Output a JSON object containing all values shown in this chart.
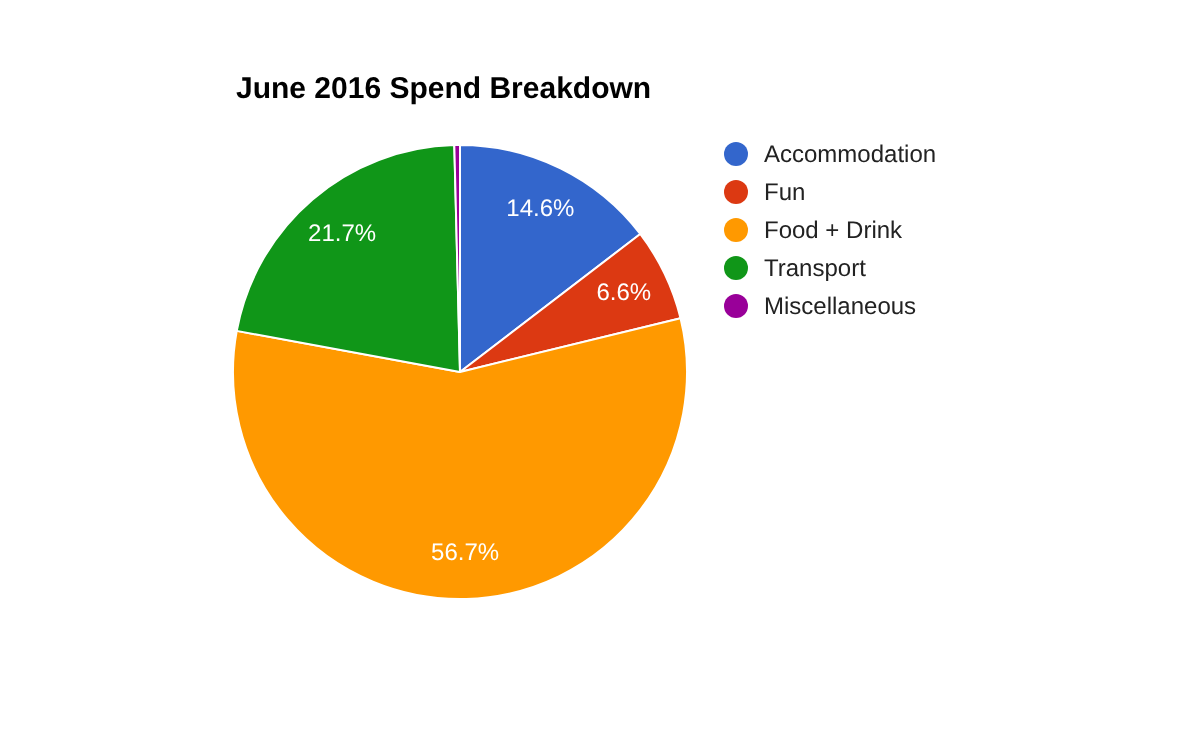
{
  "chart_data": {
    "type": "pie",
    "title": "June 2016 Spend Breakdown",
    "categories": [
      "Accommodation",
      "Fun",
      "Food + Drink",
      "Transport",
      "Miscellaneous"
    ],
    "values": [
      14.6,
      6.6,
      56.7,
      21.7,
      0.4
    ],
    "value_labels": [
      "14.6%",
      "6.6%",
      "56.7%",
      "21.7%",
      null
    ],
    "colors": [
      "#3366cc",
      "#dc3912",
      "#ff9900",
      "#109618",
      "#990099"
    ],
    "legend": "right"
  }
}
